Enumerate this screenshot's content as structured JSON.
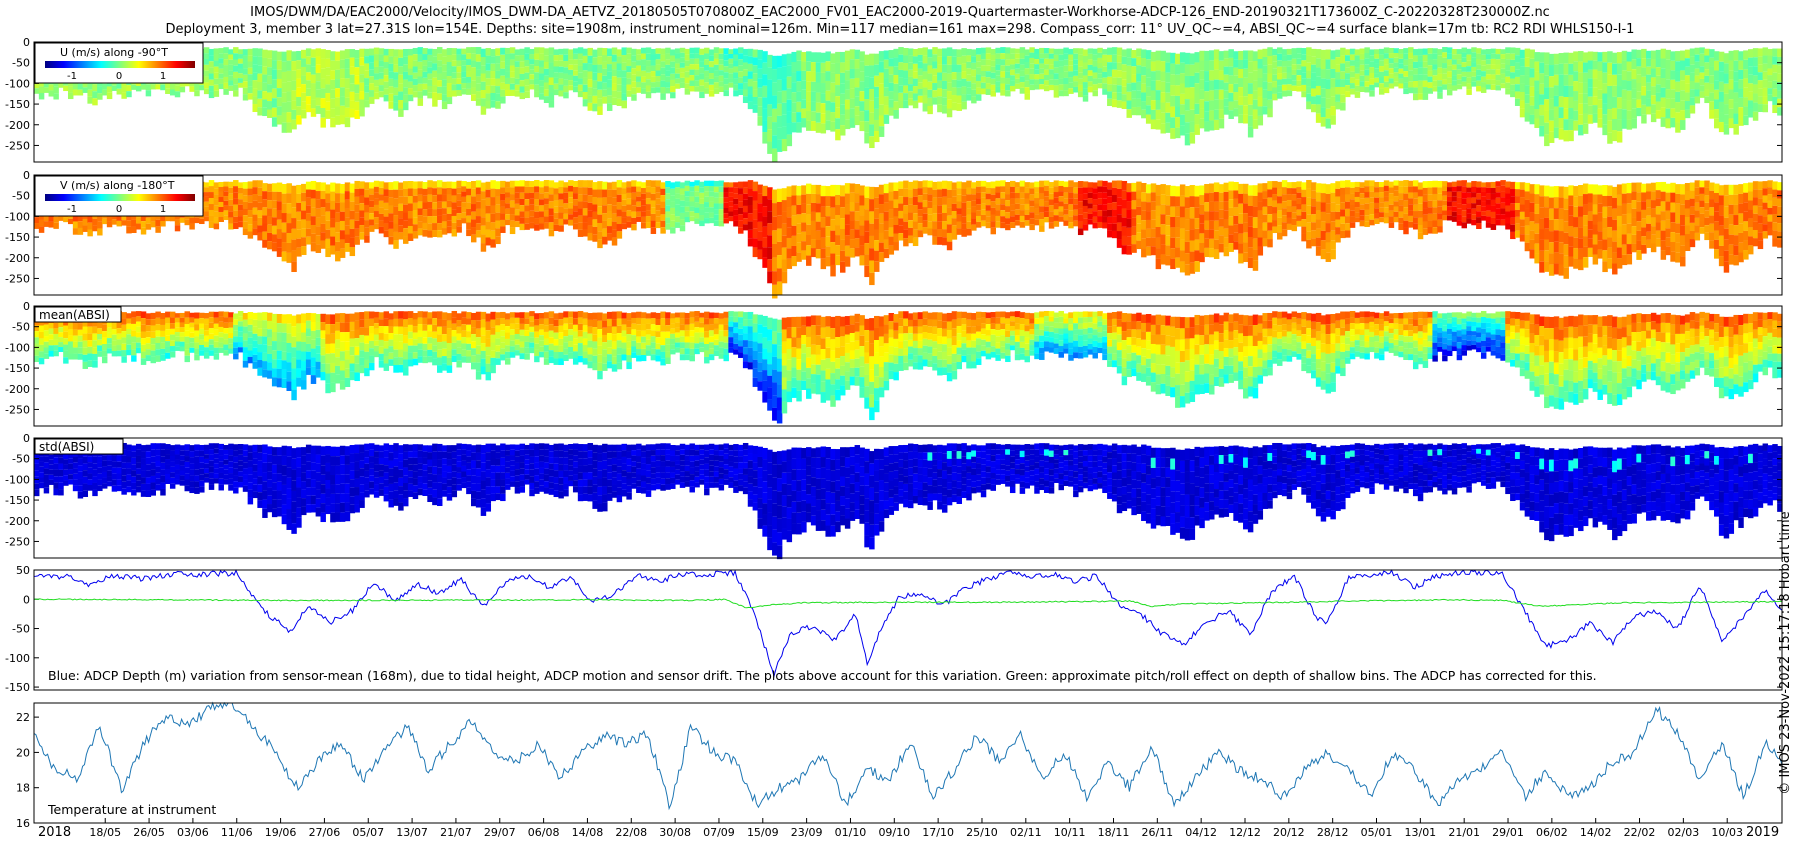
{
  "title": {
    "line1": "IMOS/DWM/DA/EAC2000/Velocity/IMOS_DWM-DA_AETVZ_20180505T070800Z_EAC2000_FV01_EAC2000-2019-Quartermaster-Workhorse-ADCP-126_END-20190321T173600Z_C-20220328T230000Z.nc",
    "line2": "Deployment 3, member 3 lat=27.31S lon=154E. Depths: site=1908m, instrument_nominal=126m. Min=117 median=161 max=298. Compass_corr: 11° UV_QC~=4, ABSI_QC~=4 surface blank=17m tb: RC2 RDI WHLS150-I-1"
  },
  "side_credit": "© IMOS 23-Nov-2022 15:17:18 Hobart time",
  "x_axis": {
    "tick_labels": [
      "18/05",
      "26/05",
      "03/06",
      "11/06",
      "19/06",
      "27/06",
      "05/07",
      "13/07",
      "21/07",
      "29/07",
      "06/08",
      "14/08",
      "22/08",
      "30/08",
      "07/09",
      "15/09",
      "23/09",
      "01/10",
      "09/10",
      "17/10",
      "25/10",
      "02/11",
      "10/11",
      "18/11",
      "26/11",
      "04/12",
      "12/12",
      "20/12",
      "28/12",
      "05/01",
      "13/01",
      "21/01",
      "29/01",
      "06/02",
      "14/02",
      "22/02",
      "02/03",
      "10/03"
    ],
    "year_start": "2018",
    "year_end": "2019"
  },
  "colors": {
    "u_scale": [
      "#00007f",
      "#0000ff",
      "#007fff",
      "#00ffff",
      "#7fff7f",
      "#ffff00",
      "#ff7f00",
      "#ff0000",
      "#7f0000"
    ],
    "std_color": "#00008f",
    "depth_line": "#0000ee",
    "pitch_line": "#22dd22",
    "temp_line": "#1f77b4"
  },
  "chart_data": [
    {
      "type": "heatmap",
      "panel": "U",
      "legend": "U (m/s) along -90°T",
      "colorbar_ticks": [
        "-1",
        "0",
        "1"
      ],
      "ylim": [
        -290,
        0
      ],
      "yticks": [
        "0",
        "-50",
        "-100",
        "-150",
        "-200",
        "-250"
      ],
      "colormap": "jet",
      "dominant_value": 0.0
    },
    {
      "type": "heatmap",
      "panel": "V",
      "legend": "V (m/s) along -180°T",
      "colorbar_ticks": [
        "-1",
        "0",
        "1"
      ],
      "ylim": [
        -290,
        0
      ],
      "yticks": [
        "0",
        "-50",
        "-100",
        "-150",
        "-200",
        "-250"
      ],
      "colormap": "jet",
      "dominant_value": 0.9
    },
    {
      "type": "heatmap",
      "panel": "mean(ABSI)",
      "legend": "mean(ABSI)",
      "ylim": [
        -290,
        0
      ],
      "yticks": [
        "0",
        "-50",
        "-100",
        "-150",
        "-200",
        "-250"
      ],
      "colormap": "jet"
    },
    {
      "type": "heatmap",
      "panel": "std(ABSI)",
      "legend": "std(ABSI)",
      "ylim": [
        -290,
        0
      ],
      "yticks": [
        "0",
        "-50",
        "-100",
        "-150",
        "-200",
        "-250"
      ],
      "colormap": "jet"
    },
    {
      "type": "line",
      "panel": "depth-variation",
      "annotation": "Blue: ADCP Depth (m) variation from sensor-mean (168m), due to tidal height, ADCP motion and sensor drift. The plots above account for this variation. Green: approximate pitch/roll effect on depth of shallow bins. The ADCP has corrected for this.",
      "ylim": [
        -155,
        50
      ],
      "yticks": [
        "50",
        "0",
        "-50",
        "-100",
        "-150"
      ],
      "x_range_days": [
        0,
        319
      ],
      "series": [
        {
          "color": "blue",
          "x": [
            0,
            6,
            10,
            14,
            20,
            26,
            30,
            37,
            40,
            43,
            47,
            50,
            54,
            58,
            62,
            66,
            70,
            74,
            78,
            82,
            86,
            90,
            94,
            98,
            102,
            106,
            110,
            114,
            118,
            122,
            126,
            128,
            131,
            133,
            135,
            138,
            142,
            146,
            150,
            152,
            155,
            158,
            162,
            166,
            170,
            174,
            178,
            182,
            186,
            190,
            194,
            198,
            202,
            206,
            210,
            214,
            218,
            222,
            226,
            230,
            234,
            236,
            240,
            244,
            248,
            252,
            256,
            260,
            264,
            268,
            272,
            276,
            280,
            284,
            288,
            292,
            296,
            300,
            304,
            308,
            312,
            316,
            319
          ],
          "values": [
            38,
            40,
            22,
            42,
            35,
            44,
            42,
            45,
            5,
            -30,
            -55,
            -10,
            -40,
            -20,
            30,
            -5,
            25,
            10,
            35,
            -15,
            30,
            40,
            20,
            38,
            -5,
            10,
            42,
            30,
            44,
            40,
            45,
            45,
            -15,
            -70,
            -128,
            -60,
            -45,
            -70,
            -25,
            -110,
            -40,
            5,
            10,
            -10,
            20,
            35,
            45,
            38,
            42,
            30,
            40,
            -10,
            -25,
            -60,
            -75,
            -40,
            -20,
            -60,
            15,
            40,
            -30,
            -40,
            38,
            42,
            45,
            20,
            40,
            45,
            46,
            45,
            -20,
            -80,
            -70,
            -40,
            -75,
            -30,
            -20,
            -50,
            25,
            -70,
            -30,
            15,
            -20
          ]
        },
        {
          "color": "green",
          "x": [
            0,
            50,
            100,
            120,
            126,
            130,
            134,
            140,
            160,
            180,
            200,
            204,
            210,
            222,
            230,
            240,
            250,
            260,
            268,
            275,
            290,
            305,
            319
          ],
          "values": [
            0,
            -2,
            -1,
            -2,
            0,
            -15,
            -10,
            -6,
            -5,
            -5,
            -3,
            -12,
            -8,
            -6,
            -5,
            -3,
            -2,
            -1,
            -2,
            -12,
            -6,
            -5,
            -4
          ]
        }
      ]
    },
    {
      "type": "line",
      "panel": "temperature",
      "annotation": "Temperature at instrument",
      "ylim": [
        16,
        22.8
      ],
      "yticks": [
        "22",
        "20",
        "18",
        "16"
      ],
      "x_range_days": [
        0,
        319
      ],
      "series": [
        {
          "color": "steelblue",
          "x": [
            0,
            4,
            8,
            12,
            16,
            20,
            24,
            28,
            32,
            36,
            40,
            44,
            48,
            52,
            56,
            60,
            64,
            68,
            72,
            76,
            80,
            84,
            88,
            92,
            96,
            100,
            104,
            108,
            112,
            116,
            120,
            124,
            128,
            132,
            136,
            140,
            144,
            148,
            152,
            156,
            160,
            164,
            168,
            172,
            176,
            180,
            184,
            188,
            192,
            196,
            200,
            204,
            208,
            212,
            216,
            220,
            224,
            228,
            232,
            236,
            240,
            244,
            248,
            252,
            256,
            260,
            264,
            268,
            272,
            276,
            280,
            284,
            288,
            292,
            296,
            300,
            304,
            308,
            312,
            316,
            319
          ],
          "values": [
            21,
            19,
            18.5,
            21.5,
            17.8,
            20.5,
            22,
            21.5,
            22.5,
            22.8,
            21.5,
            20,
            18,
            19.5,
            20.5,
            18.5,
            20,
            21.5,
            19,
            20.5,
            21.8,
            20,
            19.5,
            20.5,
            18.5,
            20,
            21,
            20.5,
            21,
            17,
            21.5,
            20,
            19.5,
            17,
            18,
            18.5,
            20,
            17,
            19,
            18.5,
            20.5,
            17.5,
            19,
            21,
            19.5,
            21,
            18.5,
            20,
            17.5,
            19.5,
            18,
            20.5,
            17,
            18.5,
            20,
            19,
            18.5,
            17.5,
            19,
            20,
            19,
            17.5,
            20,
            19,
            17,
            18.5,
            19,
            20,
            17.5,
            19,
            17.5,
            18,
            19.5,
            20,
            22.5,
            21,
            18.5,
            20.5,
            17.5,
            20.5,
            19.5
          ]
        }
      ]
    }
  ]
}
